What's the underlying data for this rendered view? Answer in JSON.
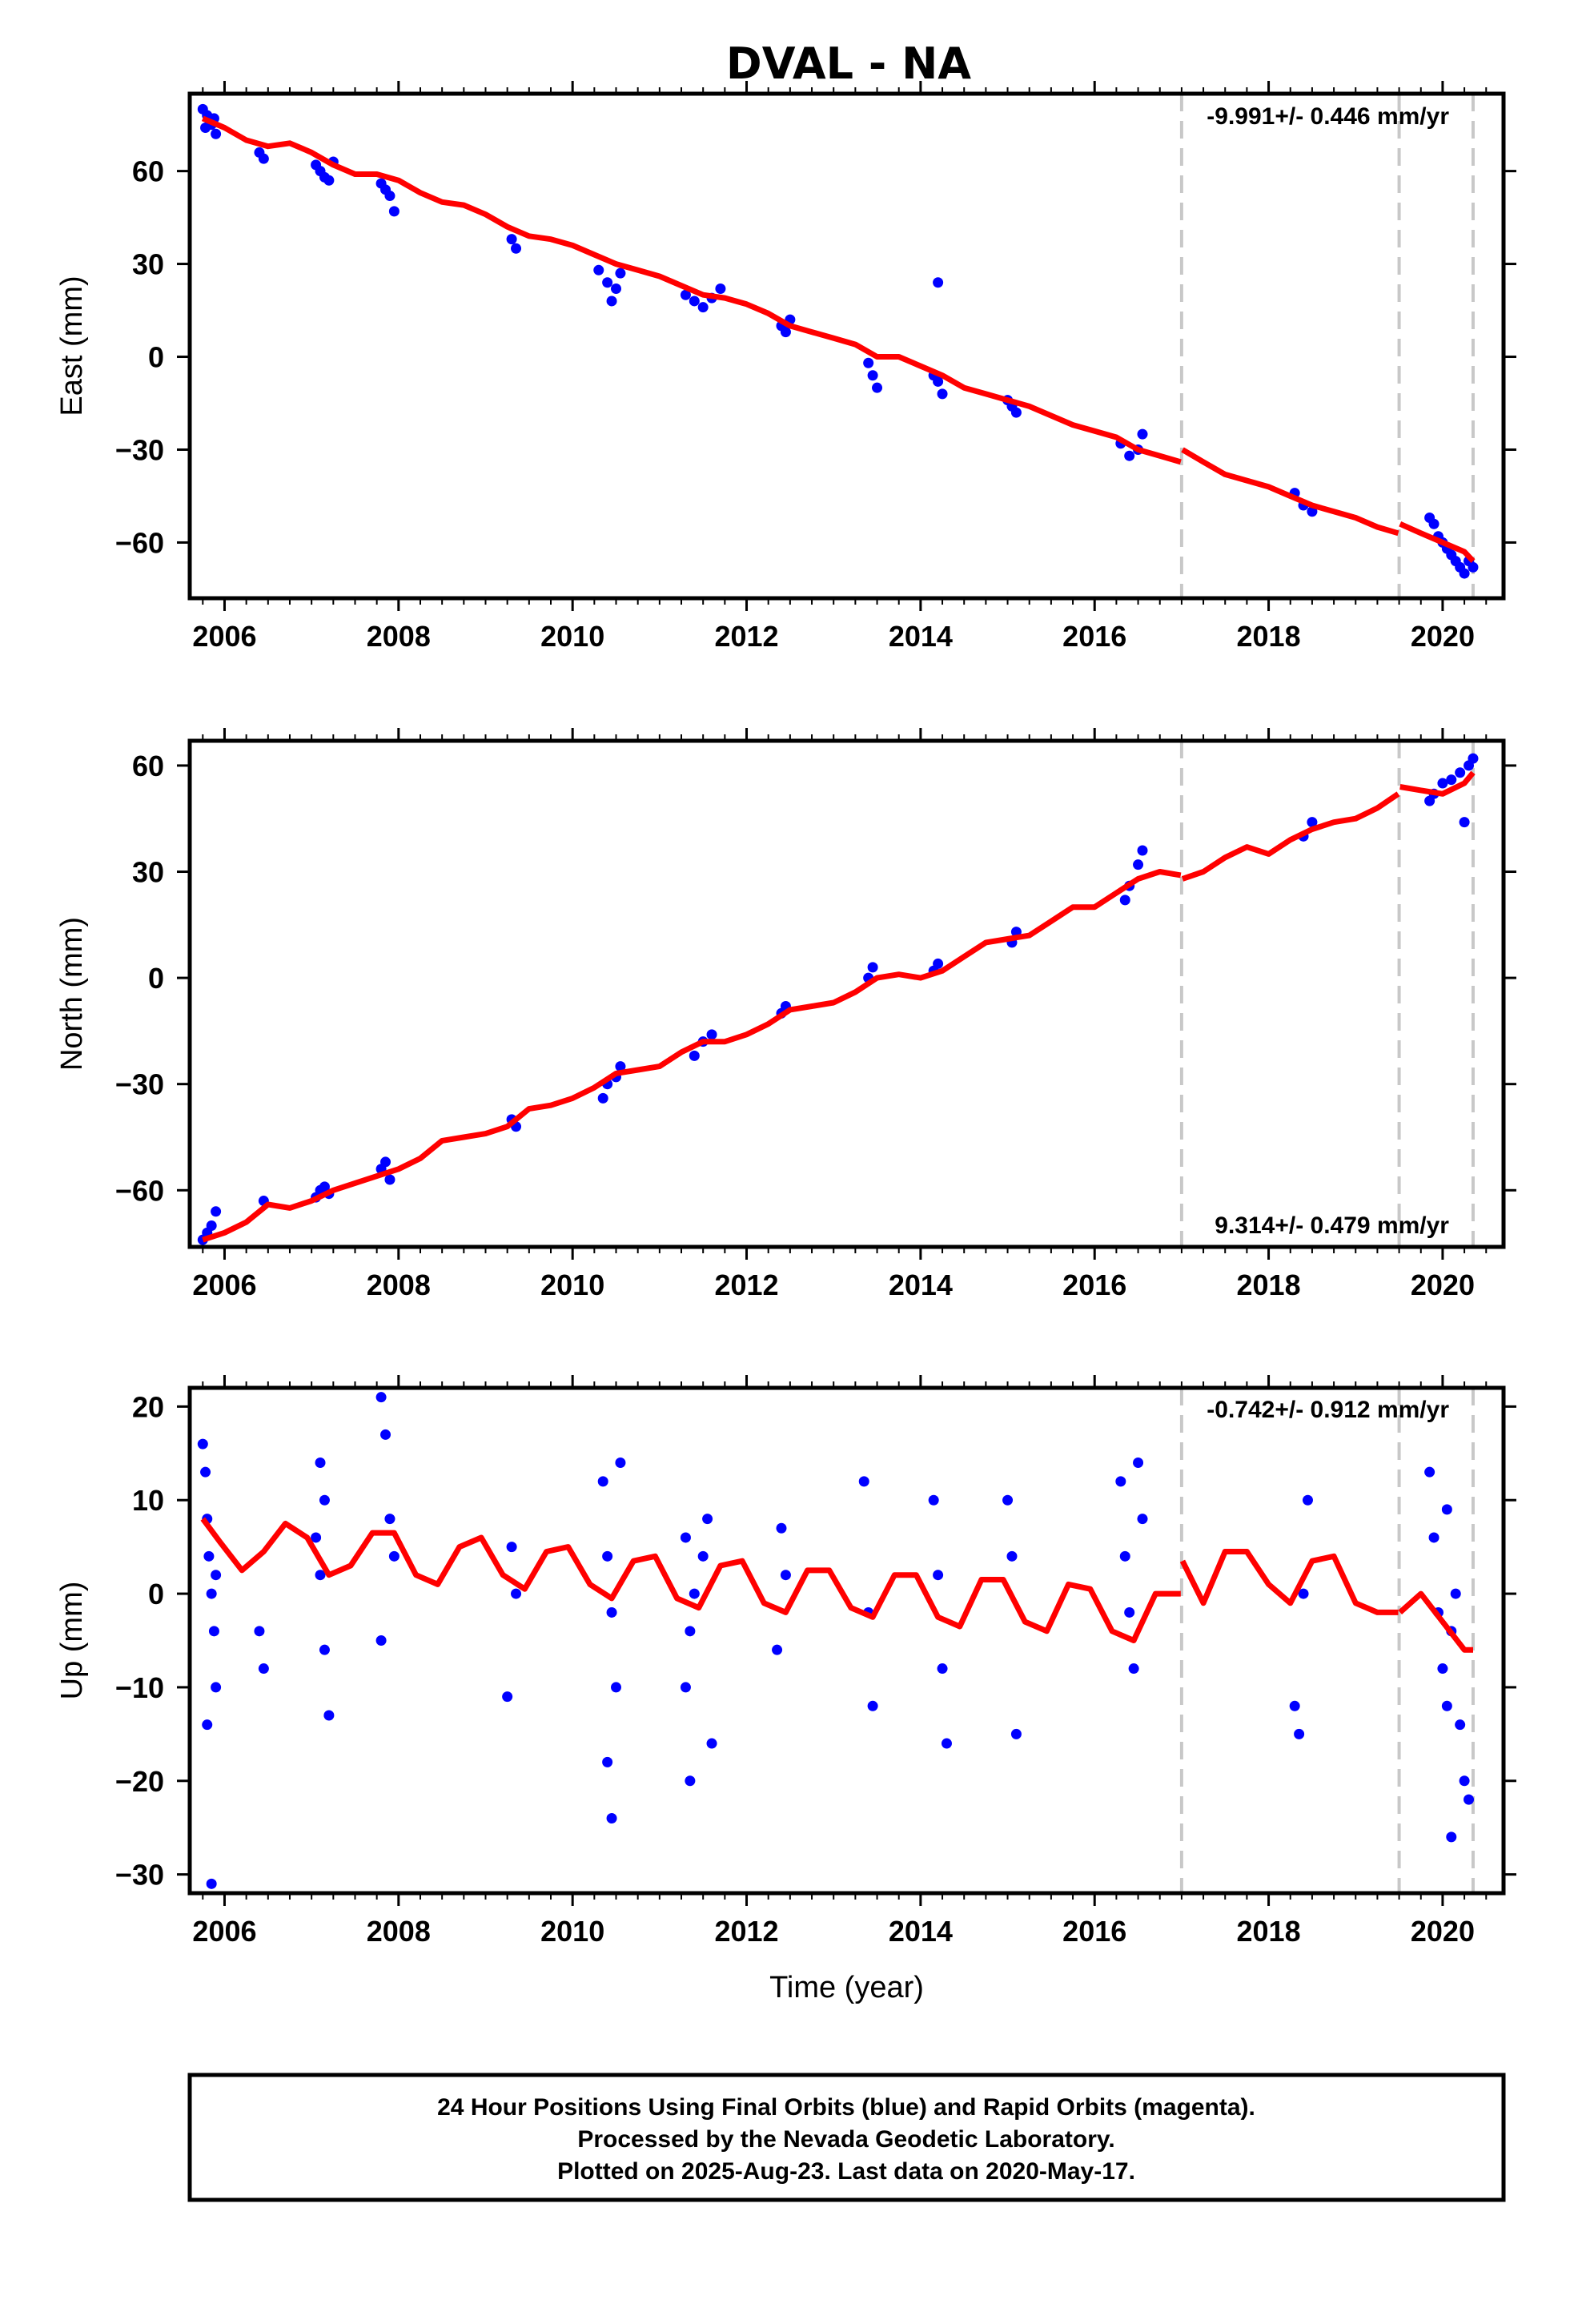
{
  "title": "DVAL - NA",
  "colors": {
    "data": "#0000ff",
    "model": "#ff0000",
    "event": "#c8c8c8",
    "axes": "#000000"
  },
  "footer": {
    "line1": "24 Hour Positions Using Final Orbits (blue) and Rapid Orbits (magenta).",
    "line2": "Processed by the Nevada Geodetic Laboratory.",
    "line3": "Plotted on 2025-Aug-23. Last data on 2020-May-17."
  },
  "chart_data": [
    {
      "type": "scatter",
      "component": "East",
      "ylabel": "East (mm)",
      "xlabel": "",
      "rate": "-9.991+/- 0.446 mm/yr",
      "xlim": [
        2005.6,
        2020.7
      ],
      "ylim": [
        -78,
        85
      ],
      "yticks": [
        -60,
        -30,
        0,
        30,
        60
      ],
      "ytick_labels": [
        "−60",
        "−30",
        "0",
        "30",
        "60"
      ],
      "xticks": [
        2006,
        2008,
        2010,
        2012,
        2014,
        2016,
        2018,
        2020
      ],
      "event_lines": [
        2017.0,
        2019.5,
        2020.35
      ],
      "series": [
        {
          "kind": "points",
          "x": [
            2005.75,
            2005.8,
            2005.85,
            2005.9,
            2005.78,
            2005.88,
            2006.4,
            2006.45,
            2007.05,
            2007.1,
            2007.15,
            2007.2,
            2007.25,
            2007.8,
            2007.85,
            2007.9,
            2007.95,
            2009.3,
            2009.35,
            2010.3,
            2010.4,
            2010.5,
            2010.55,
            2010.45,
            2011.3,
            2011.4,
            2011.5,
            2011.6,
            2011.7,
            2012.4,
            2012.45,
            2012.5,
            2013.4,
            2013.45,
            2013.5,
            2014.15,
            2014.2,
            2014.25,
            2014.2,
            2015.0,
            2015.05,
            2015.1,
            2016.3,
            2016.4,
            2016.5,
            2016.55,
            2018.3,
            2018.4,
            2018.5,
            2019.85,
            2019.9,
            2019.95,
            2020.0,
            2020.05,
            2020.1,
            2020.15,
            2020.2,
            2020.25,
            2020.3,
            2020.35
          ],
          "y": [
            80,
            78,
            75,
            72,
            74,
            77,
            66,
            64,
            62,
            60,
            58,
            57,
            63,
            56,
            54,
            52,
            47,
            38,
            35,
            28,
            24,
            22,
            27,
            18,
            20,
            18,
            16,
            19,
            22,
            10,
            8,
            12,
            -2,
            -6,
            -10,
            -6,
            -8,
            -12,
            24,
            -14,
            -16,
            -18,
            -28,
            -32,
            -30,
            -25,
            -44,
            -48,
            -50,
            -52,
            -54,
            -58,
            -60,
            -62,
            -64,
            -66,
            -68,
            -70,
            -66,
            -68
          ]
        },
        {
          "kind": "model",
          "x": [
            2005.75,
            2006.0,
            2006.25,
            2006.5,
            2006.75,
            2007.0,
            2007.25,
            2007.5,
            2007.75,
            2008.0,
            2008.25,
            2008.5,
            2008.75,
            2009.0,
            2009.25,
            2009.5,
            2009.75,
            2010.0,
            2010.25,
            2010.5,
            2010.75,
            2011.0,
            2011.25,
            2011.5,
            2011.75,
            2012.0,
            2012.25,
            2012.5,
            2012.75,
            2013.0,
            2013.25,
            2013.5,
            2013.75,
            2014.0,
            2014.25,
            2014.5,
            2014.75,
            2015.0,
            2015.25,
            2015.5,
            2015.75,
            2016.0,
            2016.25,
            2016.5,
            2016.75,
            2016.99,
            2017.01,
            2017.25,
            2017.5,
            2017.75,
            2018.0,
            2018.25,
            2018.5,
            2018.75,
            2019.0,
            2019.25,
            2019.49,
            2019.51,
            2019.75,
            2020.0,
            2020.25,
            2020.35
          ],
          "y": [
            77,
            74,
            70,
            68,
            69,
            66,
            62,
            59,
            59,
            57,
            53,
            50,
            49,
            46,
            42,
            39,
            38,
            36,
            33,
            30,
            28,
            26,
            23,
            20,
            19,
            17,
            14,
            10,
            8,
            6,
            4,
            0,
            0,
            -3,
            -6,
            -10,
            -12,
            -14,
            -16,
            -19,
            -22,
            -24,
            -26,
            -30,
            -32,
            -34,
            -30,
            -34,
            -38,
            -40,
            -42,
            -45,
            -48,
            -50,
            -52,
            -55,
            -57,
            -54,
            -57,
            -60,
            -63,
            -66
          ]
        }
      ]
    },
    {
      "type": "scatter",
      "component": "North",
      "ylabel": "North (mm)",
      "xlabel": "",
      "rate": "9.314+/- 0.479 mm/yr",
      "xlim": [
        2005.6,
        2020.7
      ],
      "ylim": [
        -76,
        67
      ],
      "yticks": [
        -60,
        -30,
        0,
        30,
        60
      ],
      "ytick_labels": [
        "−60",
        "−30",
        "0",
        "30",
        "60"
      ],
      "xticks": [
        2006,
        2008,
        2010,
        2012,
        2014,
        2016,
        2018,
        2020
      ],
      "event_lines": [
        2017.0,
        2019.5,
        2020.35
      ],
      "series": [
        {
          "kind": "points",
          "x": [
            2005.75,
            2005.8,
            2005.85,
            2005.9,
            2006.45,
            2007.05,
            2007.1,
            2007.15,
            2007.2,
            2007.8,
            2007.85,
            2007.9,
            2009.3,
            2009.35,
            2010.35,
            2010.4,
            2010.5,
            2010.55,
            2011.4,
            2011.5,
            2011.6,
            2012.4,
            2012.45,
            2013.4,
            2013.45,
            2014.15,
            2014.2,
            2015.05,
            2015.1,
            2016.35,
            2016.4,
            2016.5,
            2016.55,
            2018.4,
            2018.5,
            2019.85,
            2019.9,
            2020.0,
            2020.1,
            2020.2,
            2020.25,
            2020.3,
            2020.35
          ],
          "y": [
            -74,
            -72,
            -70,
            -66,
            -63,
            -62,
            -60,
            -59,
            -61,
            -54,
            -52,
            -57,
            -40,
            -42,
            -34,
            -30,
            -28,
            -25,
            -22,
            -18,
            -16,
            -10,
            -8,
            0,
            3,
            2,
            4,
            10,
            13,
            22,
            26,
            32,
            36,
            40,
            44,
            50,
            52,
            55,
            56,
            58,
            44,
            60,
            62
          ]
        },
        {
          "kind": "model",
          "x": [
            2005.75,
            2006.0,
            2006.25,
            2006.5,
            2006.75,
            2007.0,
            2007.25,
            2007.5,
            2007.75,
            2008.0,
            2008.25,
            2008.5,
            2008.75,
            2009.0,
            2009.25,
            2009.5,
            2009.75,
            2010.0,
            2010.25,
            2010.5,
            2010.75,
            2011.0,
            2011.25,
            2011.5,
            2011.75,
            2012.0,
            2012.25,
            2012.5,
            2012.75,
            2013.0,
            2013.25,
            2013.5,
            2013.75,
            2014.0,
            2014.25,
            2014.5,
            2014.75,
            2015.0,
            2015.25,
            2015.5,
            2015.75,
            2016.0,
            2016.25,
            2016.5,
            2016.75,
            2016.99,
            2017.01,
            2017.25,
            2017.5,
            2017.75,
            2018.0,
            2018.25,
            2018.5,
            2018.75,
            2019.0,
            2019.25,
            2019.49,
            2019.51,
            2019.75,
            2020.0,
            2020.25,
            2020.35
          ],
          "y": [
            -74,
            -72,
            -69,
            -64,
            -65,
            -63,
            -60,
            -58,
            -56,
            -54,
            -51,
            -46,
            -45,
            -44,
            -42,
            -37,
            -36,
            -34,
            -31,
            -27,
            -26,
            -25,
            -21,
            -18,
            -18,
            -16,
            -13,
            -9,
            -8,
            -7,
            -4,
            0,
            1,
            0,
            2,
            6,
            10,
            11,
            12,
            16,
            20,
            20,
            24,
            28,
            30,
            29,
            28,
            30,
            34,
            37,
            35,
            39,
            42,
            44,
            45,
            48,
            52,
            54,
            53,
            52,
            55,
            58
          ]
        }
      ]
    },
    {
      "type": "scatter",
      "component": "Up",
      "ylabel": "Up (mm)",
      "xlabel": "Time (year)",
      "rate": "-0.742+/- 0.912 mm/yr",
      "xlim": [
        2005.6,
        2020.7
      ],
      "ylim": [
        -32,
        22
      ],
      "yticks": [
        -30,
        -20,
        -10,
        0,
        10,
        20
      ],
      "ytick_labels": [
        "−30",
        "−20",
        "−10",
        "0",
        "10",
        "20"
      ],
      "xticks": [
        2006,
        2008,
        2010,
        2012,
        2014,
        2016,
        2018,
        2020
      ],
      "event_lines": [
        2017.0,
        2019.5,
        2020.35
      ],
      "series": [
        {
          "kind": "points",
          "x": [
            2005.75,
            2005.78,
            2005.8,
            2005.82,
            2005.85,
            2005.88,
            2005.9,
            2005.8,
            2005.85,
            2005.9,
            2006.4,
            2006.45,
            2007.05,
            2007.1,
            2007.15,
            2007.2,
            2007.1,
            2007.15,
            2007.8,
            2007.85,
            2007.9,
            2007.95,
            2007.8,
            2009.3,
            2009.35,
            2009.25,
            2010.35,
            2010.4,
            2010.45,
            2010.5,
            2010.55,
            2010.4,
            2010.45,
            2011.3,
            2011.35,
            2011.4,
            2011.5,
            2011.55,
            2011.6,
            2011.35,
            2011.3,
            2012.35,
            2012.4,
            2012.45,
            2013.35,
            2013.4,
            2013.45,
            2014.15,
            2014.2,
            2014.25,
            2014.3,
            2015.0,
            2015.05,
            2015.1,
            2016.3,
            2016.35,
            2016.4,
            2016.45,
            2016.5,
            2016.55,
            2018.3,
            2018.35,
            2018.4,
            2018.45,
            2019.85,
            2019.9,
            2019.95,
            2020.0,
            2020.05,
            2020.1,
            2020.15,
            2020.2,
            2020.25,
            2020.3,
            2020.1,
            2020.05
          ],
          "y": [
            16,
            13,
            8,
            4,
            0,
            -4,
            -10,
            -14,
            -31,
            2,
            -4,
            -8,
            6,
            2,
            -6,
            -13,
            14,
            10,
            21,
            17,
            8,
            4,
            -5,
            5,
            0,
            -11,
            12,
            4,
            -2,
            -10,
            14,
            -18,
            -24,
            -10,
            -4,
            0,
            4,
            8,
            -16,
            -20,
            6,
            -6,
            7,
            2,
            12,
            -2,
            -12,
            10,
            2,
            -8,
            -16,
            10,
            4,
            -15,
            12,
            4,
            -2,
            -8,
            14,
            8,
            -12,
            -15,
            0,
            10,
            13,
            6,
            -2,
            -8,
            -12,
            -4,
            0,
            -14,
            -20,
            -22,
            -26,
            9
          ],
          "note": ""
        },
        {
          "kind": "model",
          "x": [
            2005.75,
            2005.95,
            2006.2,
            2006.45,
            2006.7,
            2006.95,
            2007.2,
            2007.45,
            2007.7,
            2007.95,
            2008.2,
            2008.45,
            2008.7,
            2008.95,
            2009.2,
            2009.45,
            2009.7,
            2009.95,
            2010.2,
            2010.45,
            2010.7,
            2010.95,
            2011.2,
            2011.45,
            2011.7,
            2011.95,
            2012.2,
            2012.45,
            2012.7,
            2012.95,
            2013.2,
            2013.45,
            2013.7,
            2013.95,
            2014.2,
            2014.45,
            2014.7,
            2014.95,
            2015.2,
            2015.45,
            2015.7,
            2015.95,
            2016.2,
            2016.45,
            2016.7,
            2016.99,
            2017.01,
            2017.25,
            2017.5,
            2017.75,
            2018.0,
            2018.25,
            2018.5,
            2018.75,
            2019.0,
            2019.25,
            2019.49,
            2019.51,
            2019.75,
            2020.0,
            2020.25,
            2020.35
          ],
          "y": [
            8,
            5.5,
            2.5,
            4.5,
            7.5,
            6,
            2,
            3,
            6.5,
            6.5,
            2,
            1,
            5,
            6,
            2,
            0.5,
            4.5,
            5,
            1,
            -0.5,
            3.5,
            4,
            -0.5,
            -1.5,
            3,
            3.5,
            -1,
            -2,
            2.5,
            2.5,
            -1.5,
            -2.5,
            2,
            2,
            -2.5,
            -3.5,
            1.5,
            1.5,
            -3,
            -4,
            1,
            0.5,
            -4,
            -5,
            0,
            0,
            3.5,
            -1,
            4.5,
            4.5,
            1,
            -1,
            3.5,
            4,
            -1,
            -2,
            -2,
            -2,
            0,
            -3,
            -6,
            -6
          ]
        }
      ]
    }
  ]
}
